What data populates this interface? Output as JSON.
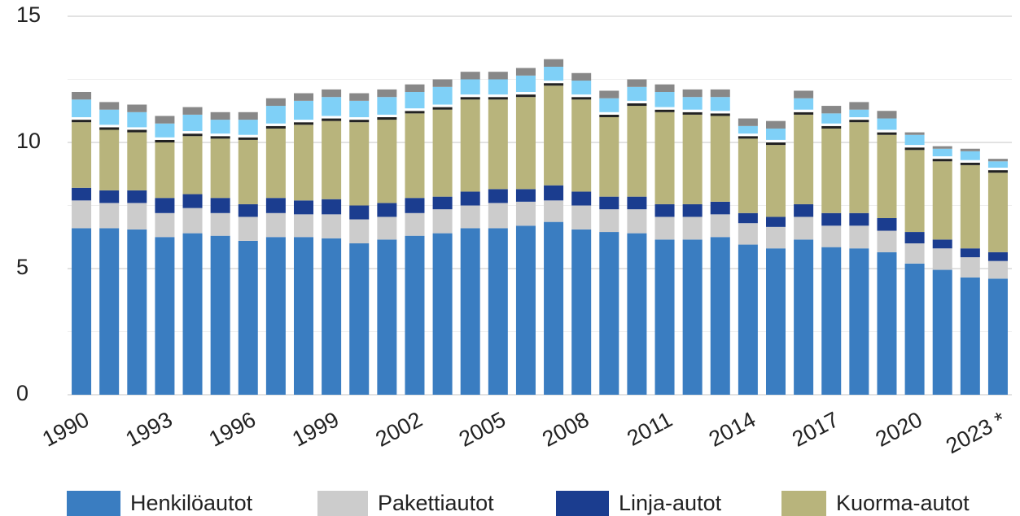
{
  "chart_data": {
    "type": "stacked_bar",
    "categories": [
      "1990",
      null,
      null,
      "1993",
      null,
      null,
      "1996",
      null,
      null,
      "1999",
      null,
      null,
      "2002",
      null,
      null,
      "2005",
      null,
      null,
      "2008",
      null,
      null,
      "2011",
      null,
      null,
      "2014",
      null,
      null,
      "2017",
      null,
      null,
      "2020",
      null,
      null,
      "2023 *"
    ],
    "series": [
      {
        "name": "Henkilöautot",
        "color": "#3a7dc1",
        "values": [
          6.6,
          6.6,
          6.55,
          6.25,
          6.4,
          6.3,
          6.1,
          6.25,
          6.25,
          6.2,
          6.0,
          6.15,
          6.3,
          6.4,
          6.6,
          6.6,
          6.7,
          6.85,
          6.55,
          6.45,
          6.4,
          6.15,
          6.15,
          6.25,
          5.95,
          5.8,
          6.15,
          5.85,
          5.8,
          5.65,
          5.2,
          4.95,
          4.65,
          4.6
        ]
      },
      {
        "name": "Pakettiautot",
        "color": "#cccccc",
        "values": [
          1.1,
          1.0,
          1.05,
          0.95,
          1.0,
          0.9,
          0.95,
          0.95,
          0.9,
          0.95,
          0.95,
          0.9,
          0.9,
          0.95,
          0.9,
          1.0,
          0.95,
          0.85,
          0.95,
          0.9,
          0.95,
          0.9,
          0.9,
          0.9,
          0.85,
          0.85,
          0.9,
          0.85,
          0.9,
          0.85,
          0.8,
          0.85,
          0.8,
          0.7
        ]
      },
      {
        "name": "Linja-autot",
        "color": "#1b3d8f",
        "values": [
          0.5,
          0.5,
          0.5,
          0.6,
          0.55,
          0.6,
          0.5,
          0.6,
          0.55,
          0.6,
          0.55,
          0.55,
          0.6,
          0.5,
          0.55,
          0.55,
          0.5,
          0.6,
          0.55,
          0.5,
          0.5,
          0.5,
          0.5,
          0.5,
          0.4,
          0.4,
          0.5,
          0.5,
          0.5,
          0.5,
          0.45,
          0.35,
          0.35,
          0.35
        ]
      },
      {
        "name": "Kuorma-autot",
        "color": "#b8b47c",
        "values": [
          2.6,
          2.4,
          2.3,
          2.2,
          2.3,
          2.35,
          2.55,
          2.75,
          3.0,
          3.1,
          3.3,
          3.3,
          3.35,
          3.45,
          3.65,
          3.55,
          3.65,
          3.95,
          3.65,
          3.15,
          3.6,
          3.65,
          3.55,
          3.4,
          2.95,
          2.85,
          3.55,
          3.35,
          3.6,
          3.3,
          3.25,
          3.1,
          3.3,
          3.15
        ]
      },
      {
        "color": "#222222",
        "values": [
          0.1,
          0.1,
          0.1,
          0.1,
          0.1,
          0.1,
          0.1,
          0.1,
          0.1,
          0.1,
          0.1,
          0.1,
          0.1,
          0.1,
          0.1,
          0.1,
          0.1,
          0.1,
          0.1,
          0.1,
          0.1,
          0.1,
          0.1,
          0.1,
          0.1,
          0.1,
          0.1,
          0.1,
          0.1,
          0.1,
          0.1,
          0.1,
          0.1,
          0.1
        ]
      },
      {
        "color": "#ffffff",
        "values": [
          0.1,
          0.1,
          0.1,
          0.1,
          0.1,
          0.1,
          0.1,
          0.1,
          0.1,
          0.1,
          0.1,
          0.1,
          0.1,
          0.1,
          0.1,
          0.1,
          0.1,
          0.1,
          0.1,
          0.1,
          0.1,
          0.1,
          0.1,
          0.1,
          0.1,
          0.1,
          0.1,
          0.1,
          0.1,
          0.1,
          0.1,
          0.1,
          0.1,
          0.1
        ]
      },
      {
        "color": "#7fd0f7",
        "values": [
          0.7,
          0.6,
          0.6,
          0.55,
          0.65,
          0.55,
          0.6,
          0.7,
          0.75,
          0.75,
          0.65,
          0.7,
          0.65,
          0.7,
          0.6,
          0.6,
          0.65,
          0.55,
          0.55,
          0.55,
          0.55,
          0.6,
          0.5,
          0.55,
          0.3,
          0.45,
          0.45,
          0.4,
          0.3,
          0.45,
          0.4,
          0.3,
          0.35,
          0.25
        ]
      },
      {
        "color": "#888888",
        "values": [
          0.3,
          0.3,
          0.3,
          0.3,
          0.3,
          0.3,
          0.3,
          0.3,
          0.3,
          0.3,
          0.3,
          0.3,
          0.3,
          0.3,
          0.3,
          0.3,
          0.3,
          0.3,
          0.3,
          0.3,
          0.3,
          0.3,
          0.3,
          0.3,
          0.3,
          0.3,
          0.3,
          0.3,
          0.3,
          0.3,
          0.1,
          0.1,
          0.1,
          0.1
        ]
      }
    ],
    "ylim": [
      0,
      15
    ],
    "yticks": [
      0,
      5,
      10,
      15
    ],
    "minor_yticks": [
      2.5,
      7.5,
      12.5
    ],
    "grid": true,
    "legend": "bottom"
  }
}
